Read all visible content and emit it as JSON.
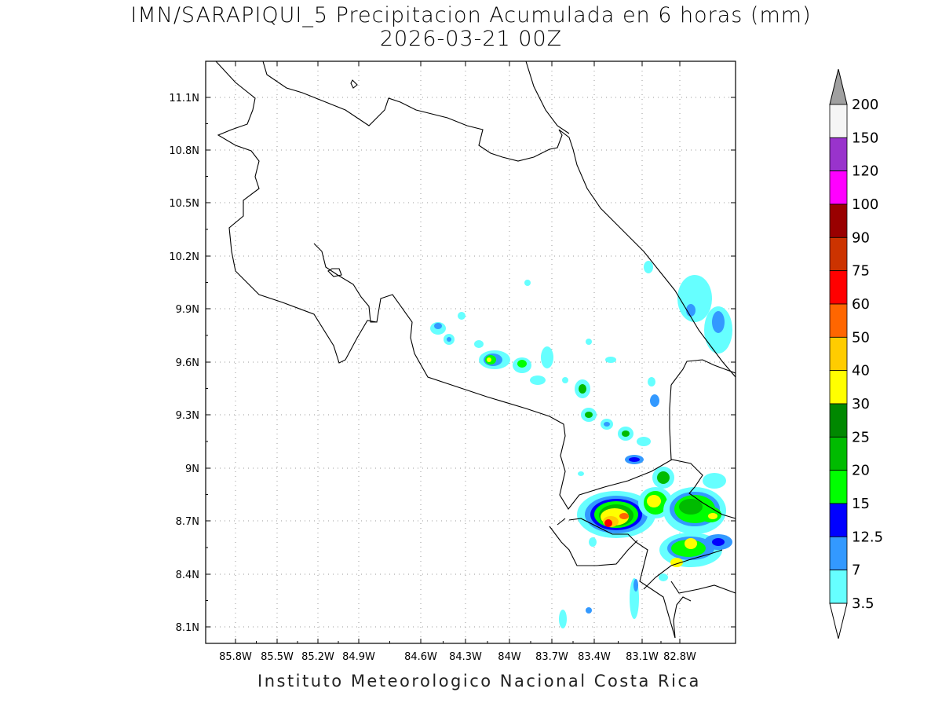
{
  "title_line1": "IMN/SARAPIQUI_5 Precipitacion Acumulada en 6 horas (mm)",
  "title_line2": "2026-03-21 00Z",
  "footer": "Instituto Meteorologico Nacional Costa Rica",
  "map": {
    "lon_range": [
      -86.0,
      -83.0
    ],
    "lat_range": [
      8.0,
      11.2
    ],
    "lon_ticks": [
      "85.8W",
      "85.5W",
      "85.2W",
      "84.9W",
      "84.6W",
      "84.3W",
      "84W",
      "83.7W",
      "83.4W",
      "83.1W",
      "82.8W"
    ],
    "lat_ticks": [
      "11.1N",
      "10.8N",
      "10.5N",
      "10.2N",
      "9.9N",
      "9.6N",
      "9.3N",
      "9N",
      "8.7N",
      "8.4N",
      "8.1N"
    ],
    "grid": "dotted"
  },
  "colorbar": {
    "levels": [
      "200",
      "150",
      "120",
      "100",
      "90",
      "75",
      "60",
      "50",
      "40",
      "30",
      "25",
      "20",
      "15",
      "12.5",
      "7",
      "3.5"
    ],
    "colors": [
      "#f5f5f5",
      "#9933cc",
      "#ff00ff",
      "#990000",
      "#cc3300",
      "#ff0000",
      "#ff6600",
      "#ffcc00",
      "#ffff00",
      "#008800",
      "#00bb00",
      "#00ff00",
      "#0000ff",
      "#3399ff",
      "#66ffff"
    ],
    "over_color": "#a0a0a0",
    "under_color": "#ffffff"
  }
}
